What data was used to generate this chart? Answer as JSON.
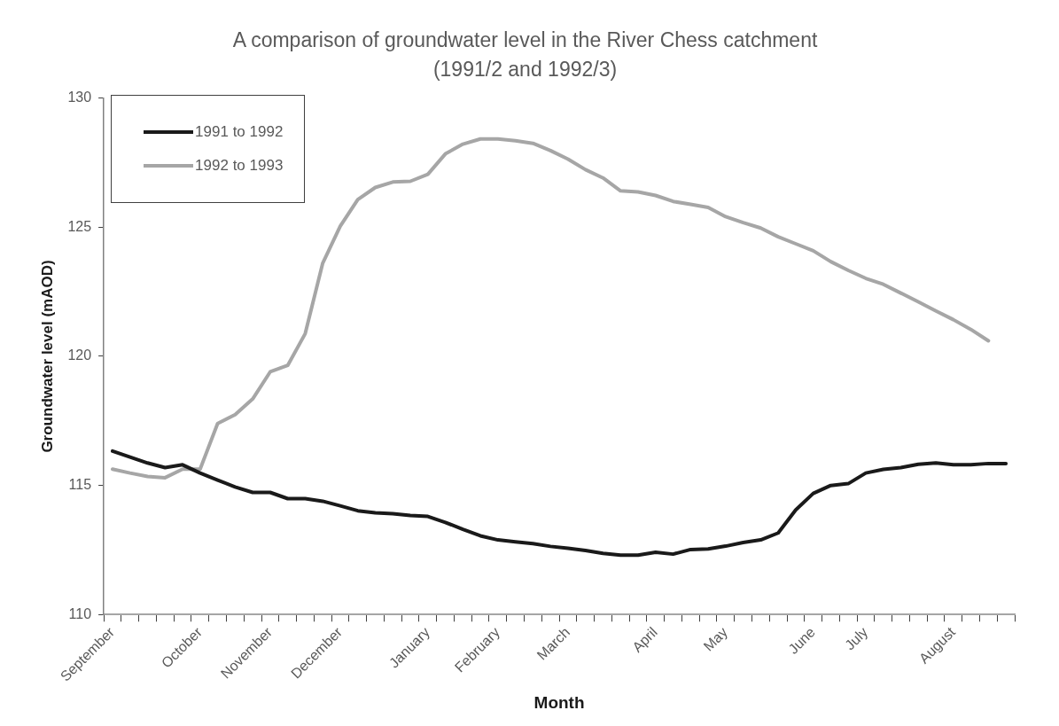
{
  "chart_data": {
    "type": "line",
    "title": "A comparison of groundwater level in the River Chess catchment\n(1991/2 and 1992/3)",
    "xlabel": "Month",
    "ylabel": "Groundwater level (mAOD)",
    "categories": [
      "September",
      null,
      null,
      null,
      null,
      "October",
      null,
      null,
      null,
      "November",
      null,
      null,
      null,
      "December",
      null,
      null,
      null,
      null,
      "January",
      null,
      null,
      null,
      "February",
      null,
      null,
      null,
      "March",
      null,
      null,
      null,
      null,
      "April",
      null,
      null,
      null,
      "May",
      null,
      null,
      null,
      null,
      "June",
      null,
      null,
      "July",
      null,
      null,
      null,
      null,
      "August",
      null,
      null,
      null
    ],
    "series": [
      {
        "name": "1991 to 1992",
        "color": "#1a1a1a",
        "values": [
          116.33,
          116.1,
          115.87,
          115.69,
          115.8,
          115.48,
          115.21,
          114.94,
          114.73,
          114.73,
          114.49,
          114.49,
          114.39,
          114.21,
          114.02,
          113.94,
          113.91,
          113.84,
          113.8,
          113.57,
          113.3,
          113.05,
          112.89,
          112.82,
          112.75,
          112.64,
          112.57,
          112.48,
          112.37,
          112.3,
          112.3,
          112.41,
          112.34,
          112.52,
          112.54,
          112.65,
          112.79,
          112.89,
          113.16,
          114.05,
          114.69,
          115.0,
          115.07,
          115.48,
          115.62,
          115.69,
          115.82,
          115.87,
          115.8,
          115.8,
          115.85,
          115.85
        ]
      },
      {
        "name": "1992 to 1993",
        "color": "#a6a6a6",
        "values": [
          115.63,
          115.48,
          115.35,
          115.3,
          115.63,
          115.63,
          117.4,
          117.74,
          118.35,
          119.4,
          119.65,
          120.88,
          123.61,
          125.04,
          126.07,
          126.54,
          126.75,
          126.78,
          127.05,
          127.84,
          128.22,
          128.42,
          128.42,
          128.35,
          128.25,
          127.97,
          127.64,
          127.23,
          126.91,
          126.41,
          126.37,
          126.23,
          126.0,
          125.89,
          125.77,
          125.41,
          125.18,
          124.97,
          124.63,
          124.36,
          124.09,
          123.67,
          123.33,
          123.02,
          122.79,
          122.45,
          122.11,
          121.76,
          121.42,
          121.04,
          120.6,
          null
        ]
      }
    ],
    "ylim": [
      110,
      130
    ],
    "yticks": [
      110,
      115,
      120,
      125,
      130
    ],
    "grid": false,
    "legend": "top left",
    "marker": "none",
    "line_style": "solid"
  }
}
